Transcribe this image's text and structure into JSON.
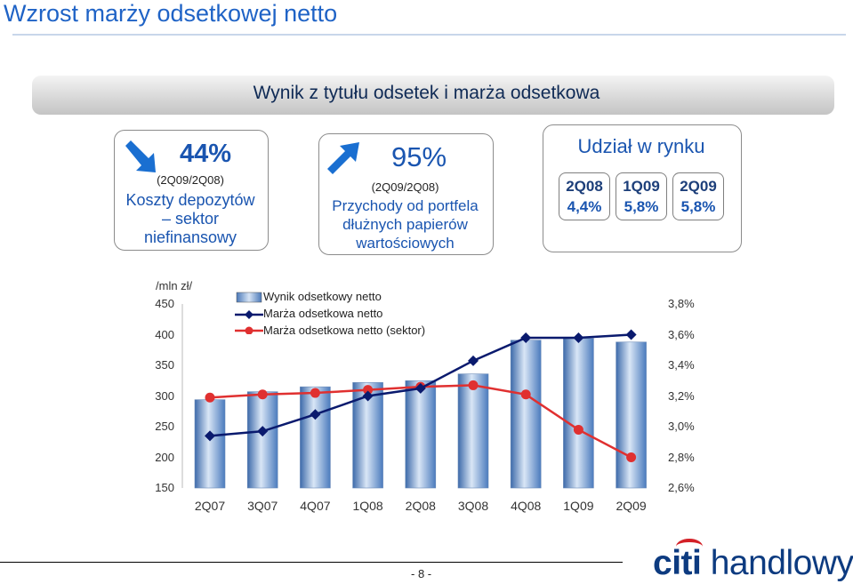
{
  "page": {
    "title": "Wzrost marży odsetkowej netto",
    "page_number": "- 8 -",
    "logo_text_1": "citi",
    "logo_text_2": "handlowy"
  },
  "banner": {
    "title": "Wynik z tytułu odsetek i marża odsetkowa"
  },
  "kpi1": {
    "value": "44%",
    "period": "(2Q09/2Q08)",
    "line1": "Koszty depozytów",
    "line2": "– sektor",
    "line3": "niefinansowy",
    "icon": "arrow-down-right-icon"
  },
  "kpi2": {
    "value": "95%",
    "period": "(2Q09/2Q08)",
    "line1": "Przychody od portfela",
    "line2": "dłużnych papierów",
    "line3": "wartościowych",
    "icon": "arrow-up-right-icon"
  },
  "kpi3": {
    "title": "Udział w rynku",
    "items": [
      {
        "period": "2Q08",
        "value": "4,4%"
      },
      {
        "period": "1Q09",
        "value": "5,8%"
      },
      {
        "period": "2Q09",
        "value": "5,8%"
      }
    ]
  },
  "chart_data": {
    "type": "bar",
    "unit_label": "/mln zł/",
    "categories": [
      "2Q07",
      "3Q07",
      "4Q07",
      "1Q08",
      "2Q08",
      "3Q08",
      "4Q08",
      "1Q09",
      "2Q09"
    ],
    "y_left": {
      "ylim": [
        150,
        450
      ],
      "ticks": [
        450,
        400,
        350,
        300,
        250,
        200,
        150
      ]
    },
    "y_right": {
      "ylim": [
        2.6,
        3.8
      ],
      "ticks": [
        "3,8%",
        "3,6%",
        "3,4%",
        "3,2%",
        "3,0%",
        "2,8%",
        "2,6%"
      ]
    },
    "series": [
      {
        "name": "Wynik odsetkowy netto",
        "kind": "bar",
        "axis": "left",
        "values": [
          294,
          307,
          315,
          322,
          325,
          336,
          391,
          394,
          388
        ]
      },
      {
        "name": "Marża odsetkowa netto",
        "kind": "line",
        "axis": "right",
        "color": "#0a1a6e",
        "values": [
          2.94,
          2.97,
          3.08,
          3.2,
          3.25,
          3.43,
          3.58,
          3.58,
          3.6
        ]
      },
      {
        "name": "Marża odsetkowa netto (sektor)",
        "kind": "line",
        "axis": "right",
        "color": "#e03030",
        "values": [
          3.19,
          3.21,
          3.22,
          3.24,
          3.26,
          3.27,
          3.21,
          2.98,
          2.8
        ]
      }
    ],
    "legend_placement": "top-left",
    "grid": false
  }
}
